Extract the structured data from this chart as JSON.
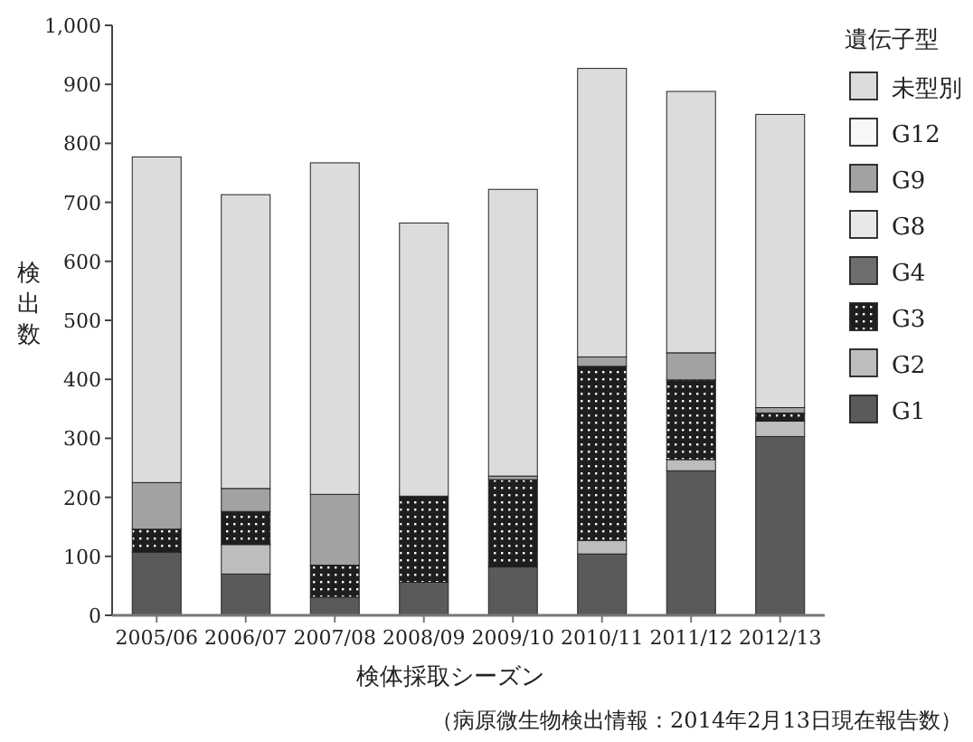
{
  "chart_data": {
    "type": "bar",
    "stacked": true,
    "xlabel": "検体採取シーズン",
    "ylabel": "検出数",
    "legend_title": "遺伝子型",
    "legend": "right",
    "annotations": [
      "（病原微生物検出情報：2014年2月13日現在報告数）"
    ],
    "categories": [
      "2005/06",
      "2006/07",
      "2007/08",
      "2008/09",
      "2009/10",
      "2010/11",
      "2011/12",
      "2012/13"
    ],
    "ylim": [
      0,
      1000
    ],
    "yticks": [
      0,
      100,
      200,
      300,
      400,
      500,
      600,
      700,
      800,
      900,
      {
        "value": 1000,
        "label": "1,000"
      }
    ],
    "series": [
      {
        "name": "G1",
        "color": "#5a5a5a",
        "values": [
          107,
          70,
          31,
          56,
          82,
          104,
          245,
          303
        ]
      },
      {
        "name": "G2",
        "color": "#bdbdbd",
        "values": [
          0,
          50,
          0,
          0,
          0,
          23,
          19,
          26
        ]
      },
      {
        "name": "G3",
        "color": "#1e1e1e",
        "values": [
          39,
          56,
          54,
          146,
          148,
          295,
          135,
          14
        ]
      },
      {
        "name": "G4",
        "color": "#6e6e6e",
        "values": [
          0,
          0,
          0,
          0,
          0,
          0,
          0,
          0
        ]
      },
      {
        "name": "G8",
        "color": "#e8e8e8",
        "values": [
          0,
          0,
          0,
          0,
          0,
          0,
          0,
          0
        ]
      },
      {
        "name": "G9",
        "color": "#a2a2a4",
        "values": [
          79,
          39,
          120,
          0,
          6,
          16,
          46,
          9
        ]
      },
      {
        "name": "G12",
        "color": "#f7f7f7",
        "values": [
          0,
          0,
          0,
          0,
          0,
          0,
          0,
          0
        ]
      },
      {
        "name": "未型別",
        "color": "#dcdcde",
        "values": [
          552,
          498,
          562,
          463,
          486,
          489,
          443,
          497
        ]
      }
    ]
  }
}
